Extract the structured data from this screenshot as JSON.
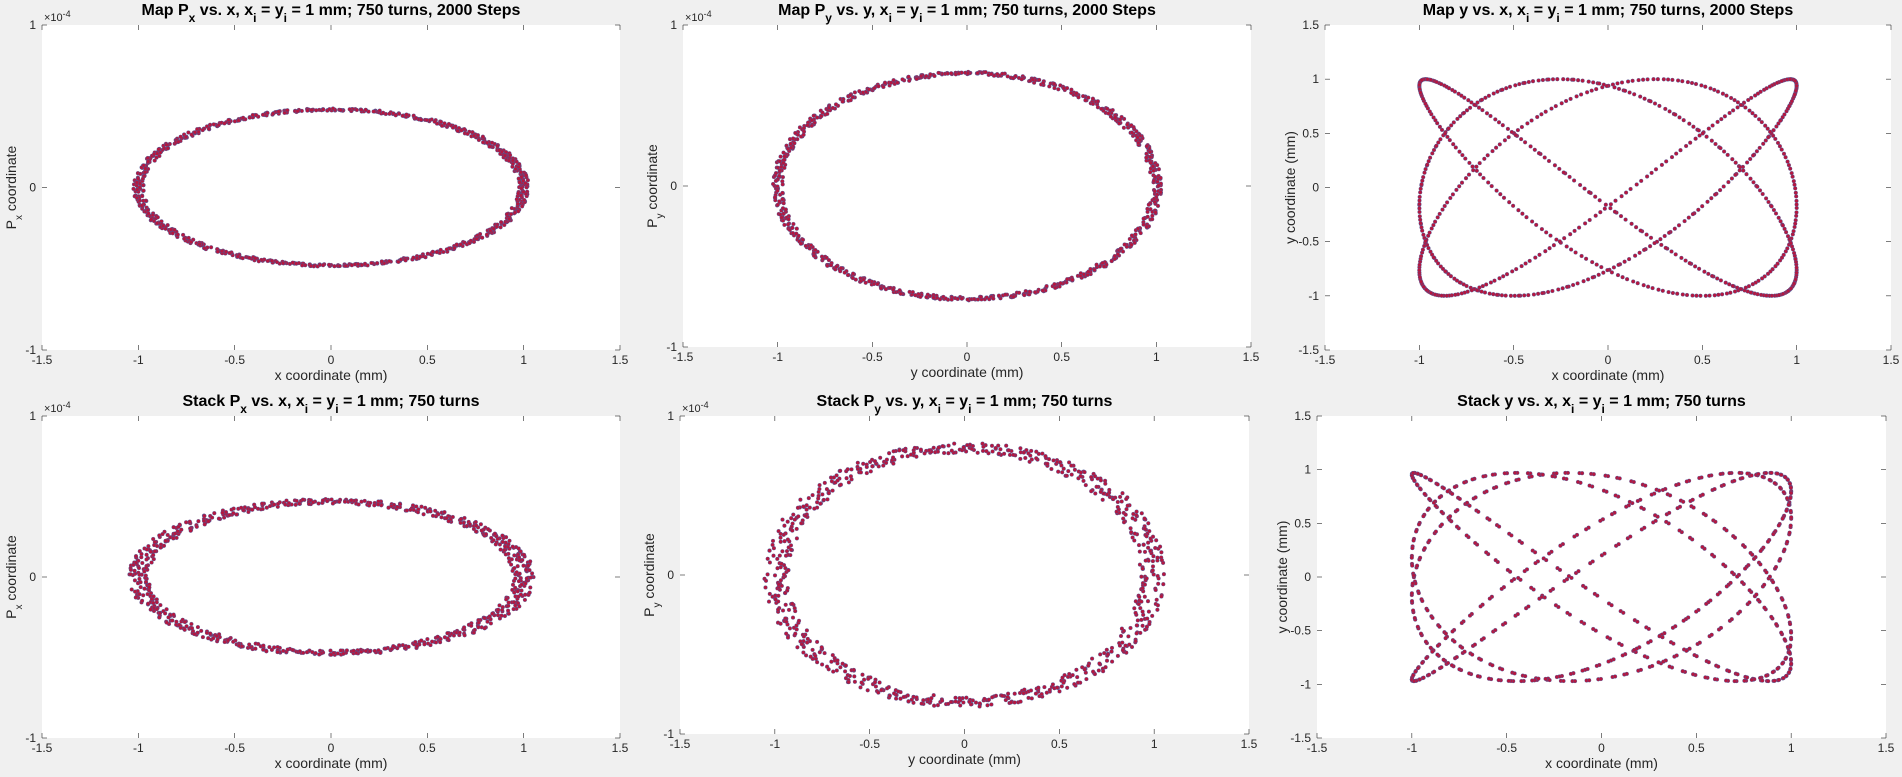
{
  "figure": {
    "background": "#f0f0f0",
    "marker_color": "#b5173f",
    "marker_edge_color": "#2a6fb5"
  },
  "chart_data": [
    {
      "id": "map-px-x",
      "type": "scatter",
      "title": "Map P<sub>x</sub> vs. x, x<sub>i</sub> = y<sub>i</sub> = 1 mm; 750 turns, 2000 Steps",
      "xlabel": "x coordinate (mm)",
      "ylabel": "P<sub>x</sub> coordinate",
      "xlim": [
        -1.5,
        1.5
      ],
      "ylim": [
        -1,
        1
      ],
      "xticks": [
        -1.5,
        -1,
        -0.5,
        0,
        0.5,
        1,
        1.5
      ],
      "yticks": [
        -1,
        0,
        1
      ],
      "y_exponent": "×10",
      "y_exponent_power": "-4",
      "grid": false,
      "pattern": {
        "shape": "ellipse",
        "center_x": 0.0,
        "center_y": 0.0,
        "radius_x": 1.0,
        "radius_y": 0.48,
        "jitter": 0.012,
        "count": 750
      }
    },
    {
      "id": "map-py-y",
      "type": "scatter",
      "title": "Map P<sub>y</sub> vs. y, x<sub>i</sub> = y<sub>i</sub> = 1 mm; 750 turns, 2000 Steps",
      "xlabel": "y coordinate (mm)",
      "ylabel": "P<sub>y</sub> coordinate",
      "xlim": [
        -1.5,
        1.5
      ],
      "ylim": [
        -1,
        1
      ],
      "xticks": [
        -1.5,
        -1,
        -0.5,
        0,
        0.5,
        1,
        1.5
      ],
      "yticks": [
        -1,
        0,
        1
      ],
      "y_exponent": "×10",
      "y_exponent_power": "-4",
      "grid": false,
      "pattern": {
        "shape": "ellipse",
        "center_x": 0.0,
        "center_y": 0.0,
        "radius_x": 1.0,
        "radius_y": 0.7,
        "jitter": 0.012,
        "count": 750
      }
    },
    {
      "id": "map-y-x",
      "type": "scatter",
      "title": "Map y vs. x, x<sub>i</sub> = y<sub>i</sub> = 1 mm; 750 turns, 2000 Steps",
      "xlabel": "x coordinate (mm)",
      "ylabel": "y coordinate (mm)",
      "xlim": [
        -1.5,
        1.5
      ],
      "ylim": [
        -1.5,
        1.5
      ],
      "xticks": [
        -1.5,
        -1,
        -0.5,
        0,
        0.5,
        1,
        1.5
      ],
      "yticks": [
        -1.5,
        -1,
        -0.5,
        0,
        0.5,
        1,
        1.5
      ],
      "grid": false,
      "pattern": {
        "shape": "lissajous",
        "x_amplitude": 1.0,
        "y_amplitude": 1.0,
        "freq_x": 1,
        "freq_y": 1.3333,
        "phase": 0.35,
        "jitter": 0.0,
        "count": 750
      }
    },
    {
      "id": "stack-px-x",
      "type": "scatter",
      "title": "Stack P<sub>x</sub> vs. x, x<sub>i</sub> = y<sub>i</sub> = 1 mm; 750 turns",
      "xlabel": "x coordinate (mm)",
      "ylabel": "P<sub>x</sub> coordinate",
      "xlim": [
        -1.5,
        1.5
      ],
      "ylim": [
        -1,
        1
      ],
      "xticks": [
        -1.5,
        -1,
        -0.5,
        0,
        0.5,
        1,
        1.5
      ],
      "yticks": [
        -1,
        0,
        1
      ],
      "y_exponent": "×10",
      "y_exponent_power": "-4",
      "grid": false,
      "pattern": {
        "shape": "ellipse",
        "center_x": 0.0,
        "center_y": 0.0,
        "radius_x": 1.0,
        "radius_y": 0.47,
        "jitter": 0.025,
        "count": 750
      }
    },
    {
      "id": "stack-py-y",
      "type": "scatter",
      "title": "Stack P<sub>y</sub> vs. y, x<sub>i</sub> = y<sub>i</sub> = 1 mm; 750 turns",
      "xlabel": "y coordinate (mm)",
      "ylabel": "P<sub>y</sub> coordinate",
      "xlim": [
        -1.5,
        1.5
      ],
      "ylim": [
        -1,
        1
      ],
      "xticks": [
        -1.5,
        -1,
        -0.5,
        0,
        0.5,
        1,
        1.5
      ],
      "yticks": [
        -1,
        0,
        1
      ],
      "y_exponent": "×10",
      "y_exponent_power": "-4",
      "grid": false,
      "pattern": {
        "shape": "ellipse",
        "center_x": 0.0,
        "center_y": 0.0,
        "radius_x": 0.99,
        "radius_y": 0.8,
        "jitter": 0.03,
        "count": 750
      }
    },
    {
      "id": "stack-y-x",
      "type": "scatter",
      "title": "Stack y vs. x, x<sub>i</sub> = y<sub>i</sub> = 1 mm; 750 turns",
      "xlabel": "x coordinate (mm)",
      "ylabel": "y coordinate (mm)",
      "xlim": [
        -1.5,
        1.5
      ],
      "ylim": [
        -1.5,
        1.5
      ],
      "xticks": [
        -1.5,
        -1,
        -0.5,
        0,
        0.5,
        1,
        1.5
      ],
      "yticks": [
        -1.5,
        -1,
        -0.5,
        0,
        0.5,
        1,
        1.5
      ],
      "grid": false,
      "pattern": {
        "shape": "lissajous",
        "x_amplitude": 1.0,
        "y_amplitude": 0.97,
        "freq_x": 1,
        "freq_y": 1.25,
        "phase": 0.6,
        "jitter": 0.0,
        "count": 750
      }
    }
  ]
}
